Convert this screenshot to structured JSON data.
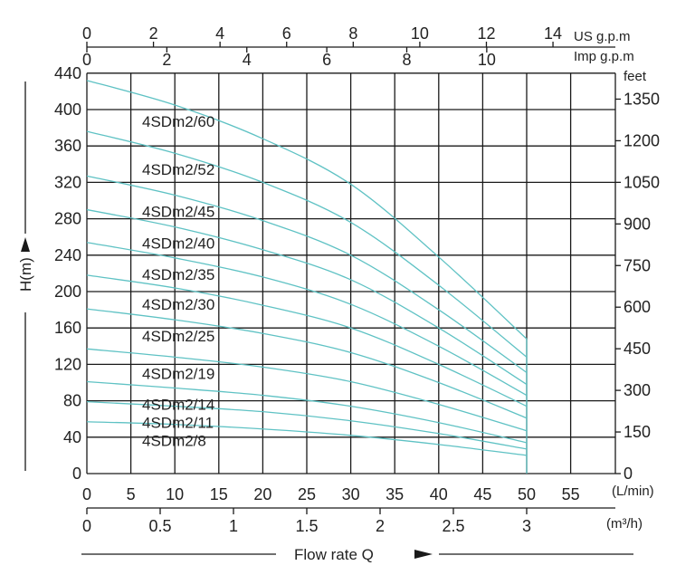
{
  "chart_data": {
    "type": "line",
    "xlabel": "Flow rate Q",
    "ylabel": "H(m)",
    "x_primary": {
      "unit": "(L/min)",
      "range": [
        0,
        60
      ],
      "ticks": [
        0,
        5,
        10,
        15,
        20,
        25,
        30,
        35,
        40,
        45,
        50,
        55
      ]
    },
    "x_m3h": {
      "unit": "(m³/h)",
      "ticks": [
        0,
        0.5,
        1,
        1.5,
        2,
        2.5,
        3
      ]
    },
    "x_us_gpm": {
      "unit": "US g.p.m",
      "ticks": [
        0,
        2,
        4,
        6,
        8,
        10,
        12,
        14
      ]
    },
    "x_imp_gpm": {
      "unit": "Imp g.p.m",
      "ticks": [
        0,
        2,
        4,
        6,
        8,
        10
      ]
    },
    "y_primary": {
      "range": [
        0,
        440
      ],
      "ticks": [
        0,
        40,
        80,
        120,
        160,
        200,
        240,
        280,
        320,
        360,
        400,
        440
      ]
    },
    "y_feet": {
      "unit": "feet",
      "ticks": [
        0,
        150,
        300,
        450,
        600,
        750,
        900,
        1050,
        1200,
        1350
      ]
    },
    "grid": true,
    "line_color": "#5fc2c4",
    "series": [
      {
        "name": "4SDm2/60",
        "x": [
          0,
          10,
          20,
          30,
          40,
          50
        ],
        "values": [
          432,
          405,
          368,
          318,
          238,
          148
        ]
      },
      {
        "name": "4SDm2/52",
        "x": [
          0,
          10,
          20,
          30,
          40,
          50
        ],
        "values": [
          376,
          352,
          320,
          276,
          207,
          128
        ]
      },
      {
        "name": "4SDm2/45",
        "x": [
          0,
          10,
          20,
          30,
          40,
          50
        ],
        "values": [
          327,
          306,
          278,
          240,
          180,
          111
        ]
      },
      {
        "name": "4SDm2/40",
        "x": [
          0,
          10,
          20,
          30,
          40,
          50
        ],
        "values": [
          290,
          271,
          246,
          213,
          160,
          98
        ]
      },
      {
        "name": "4SDm2/35",
        "x": [
          0,
          10,
          20,
          30,
          40,
          50
        ],
        "values": [
          254,
          237,
          216,
          186,
          140,
          86
        ]
      },
      {
        "name": "4SDm2/30",
        "x": [
          0,
          10,
          20,
          30,
          40,
          50
        ],
        "values": [
          218,
          204,
          185,
          160,
          120,
          74
        ]
      },
      {
        "name": "4SDm2/25",
        "x": [
          0,
          10,
          20,
          30,
          40,
          50
        ],
        "values": [
          181,
          169,
          154,
          133,
          100,
          61
        ]
      },
      {
        "name": "4SDm2/19",
        "x": [
          0,
          10,
          20,
          30,
          40,
          50
        ],
        "values": [
          137,
          128,
          117,
          101,
          76,
          47
        ]
      },
      {
        "name": "4SDm2/14",
        "x": [
          0,
          10,
          20,
          30,
          40,
          50
        ],
        "values": [
          101,
          94,
          86,
          74,
          56,
          34
        ]
      },
      {
        "name": "4SDm2/11",
        "x": [
          0,
          10,
          20,
          30,
          40,
          50
        ],
        "values": [
          79,
          74,
          68,
          58,
          44,
          27
        ]
      },
      {
        "name": "4SDm2/8",
        "x": [
          0,
          10,
          20,
          30,
          40,
          50
        ],
        "values": [
          57,
          54,
          49,
          42,
          32,
          20
        ]
      }
    ]
  }
}
